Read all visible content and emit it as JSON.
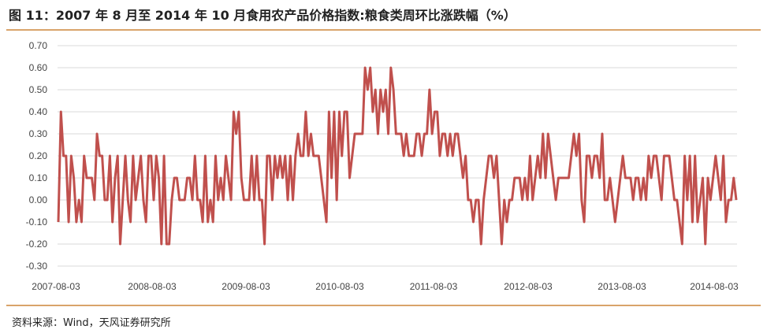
{
  "title": "图 11：2007 年 8 月至 2014 年 10 月食用农产品价格指数:粮食类周环比涨跌幅（%）",
  "source": "资料来源：Wind，天风证券研究所",
  "colors": {
    "line": "#c0504d",
    "grid": "#d9d9d9",
    "rule": "#d9a46a"
  },
  "chart_data": {
    "type": "line",
    "title": "图 11：2007 年 8 月至 2014 年 10 月食用农产品价格指数:粮食类周环比涨跌幅（%）",
    "xlabel": "",
    "ylabel": "",
    "ylim": [
      -0.3,
      0.7
    ],
    "yticks": [
      "0.70",
      "0.60",
      "0.50",
      "0.40",
      "0.30",
      "0.20",
      "0.10",
      "0.00",
      "-0.10",
      "-0.20",
      "-0.30"
    ],
    "xticks": [
      "2007-08-03",
      "2008-08-03",
      "2009-08-03",
      "2010-08-03",
      "2011-08-03",
      "2012-08-03",
      "2013-08-03",
      "2014-08-03"
    ],
    "grid": "horizontal",
    "legend": "none",
    "series": [
      {
        "values": [
          -0.1,
          0.4,
          0.2,
          0.2,
          -0.1,
          0.2,
          0.1,
          -0.1,
          0.0,
          -0.1,
          0.2,
          0.1,
          0.1,
          0.1,
          0.0,
          0.3,
          0.2,
          0.2,
          0.0,
          0.0,
          0.2,
          -0.1,
          0.1,
          0.2,
          -0.2,
          0.0,
          0.2,
          0.0,
          -0.1,
          0.2,
          0.0,
          0.1,
          0.2,
          0.0,
          -0.1,
          0.2,
          0.2,
          0.0,
          0.2,
          0.1,
          -0.2,
          0.2,
          -0.2,
          -0.2,
          0.0,
          0.1,
          0.1,
          0.0,
          0.0,
          0.0,
          0.1,
          0.1,
          0.0,
          0.2,
          0.0,
          0.0,
          -0.1,
          0.2,
          -0.1,
          0.0,
          -0.1,
          0.2,
          0.0,
          0.1,
          0.0,
          0.2,
          0.1,
          0.0,
          0.4,
          0.3,
          0.4,
          0.1,
          0.0,
          0.0,
          0.0,
          0.2,
          0.0,
          0.2,
          0.0,
          0.0,
          -0.2,
          0.2,
          0.2,
          0.0,
          0.2,
          0.1,
          0.2,
          0.1,
          0.2,
          0.0,
          0.2,
          0.0,
          0.2,
          0.3,
          0.2,
          0.2,
          0.4,
          0.2,
          0.3,
          0.2,
          0.2,
          0.2,
          0.1,
          0.0,
          -0.1,
          0.4,
          0.1,
          0.4,
          0.0,
          0.4,
          0.2,
          0.4,
          0.4,
          0.1,
          0.2,
          0.3,
          0.3,
          0.3,
          0.3,
          0.6,
          0.5,
          0.6,
          0.4,
          0.5,
          0.3,
          0.5,
          0.4,
          0.5,
          0.3,
          0.6,
          0.5,
          0.3,
          0.3,
          0.3,
          0.2,
          0.3,
          0.2,
          0.2,
          0.2,
          0.3,
          0.3,
          0.2,
          0.3,
          0.3,
          0.5,
          0.3,
          0.4,
          0.4,
          0.2,
          0.3,
          0.3,
          0.2,
          0.3,
          0.2,
          0.3,
          0.3,
          0.2,
          0.1,
          0.2,
          0.0,
          0.0,
          -0.1,
          0.0,
          0.0,
          -0.2,
          0.0,
          0.1,
          0.2,
          0.2,
          0.1,
          0.2,
          0.0,
          -0.2,
          0.0,
          -0.1,
          0.0,
          0.0,
          0.1,
          0.1,
          0.1,
          0.0,
          0.1,
          0.0,
          0.2,
          0.0,
          0.1,
          0.2,
          0.1,
          0.3,
          0.1,
          0.3,
          0.2,
          0.1,
          0.0,
          0.1,
          0.1,
          0.1,
          0.1,
          0.1,
          0.2,
          0.3,
          0.2,
          0.3,
          0.0,
          -0.1,
          0.2,
          0.2,
          0.1,
          0.2,
          0.2,
          0.1,
          0.3,
          0.0,
          0.0,
          0.1,
          0.0,
          -0.1,
          0.0,
          0.1,
          0.2,
          0.1,
          0.1,
          0.1,
          0.0,
          0.1,
          0.1,
          0.0,
          0.1,
          0.0,
          0.2,
          0.1,
          0.2,
          0.2,
          0.1,
          0.0,
          0.2,
          0.2,
          0.2,
          0.1,
          0.0,
          0.0,
          -0.1,
          -0.2,
          0.2,
          0.0,
          0.2,
          -0.1,
          0.2,
          -0.1,
          0.0,
          0.1,
          -0.2,
          0.1,
          0.0,
          0.1,
          0.2,
          0.1,
          0.0,
          0.2,
          -0.1,
          0.0,
          0.0,
          0.1,
          0.0
        ]
      }
    ]
  }
}
